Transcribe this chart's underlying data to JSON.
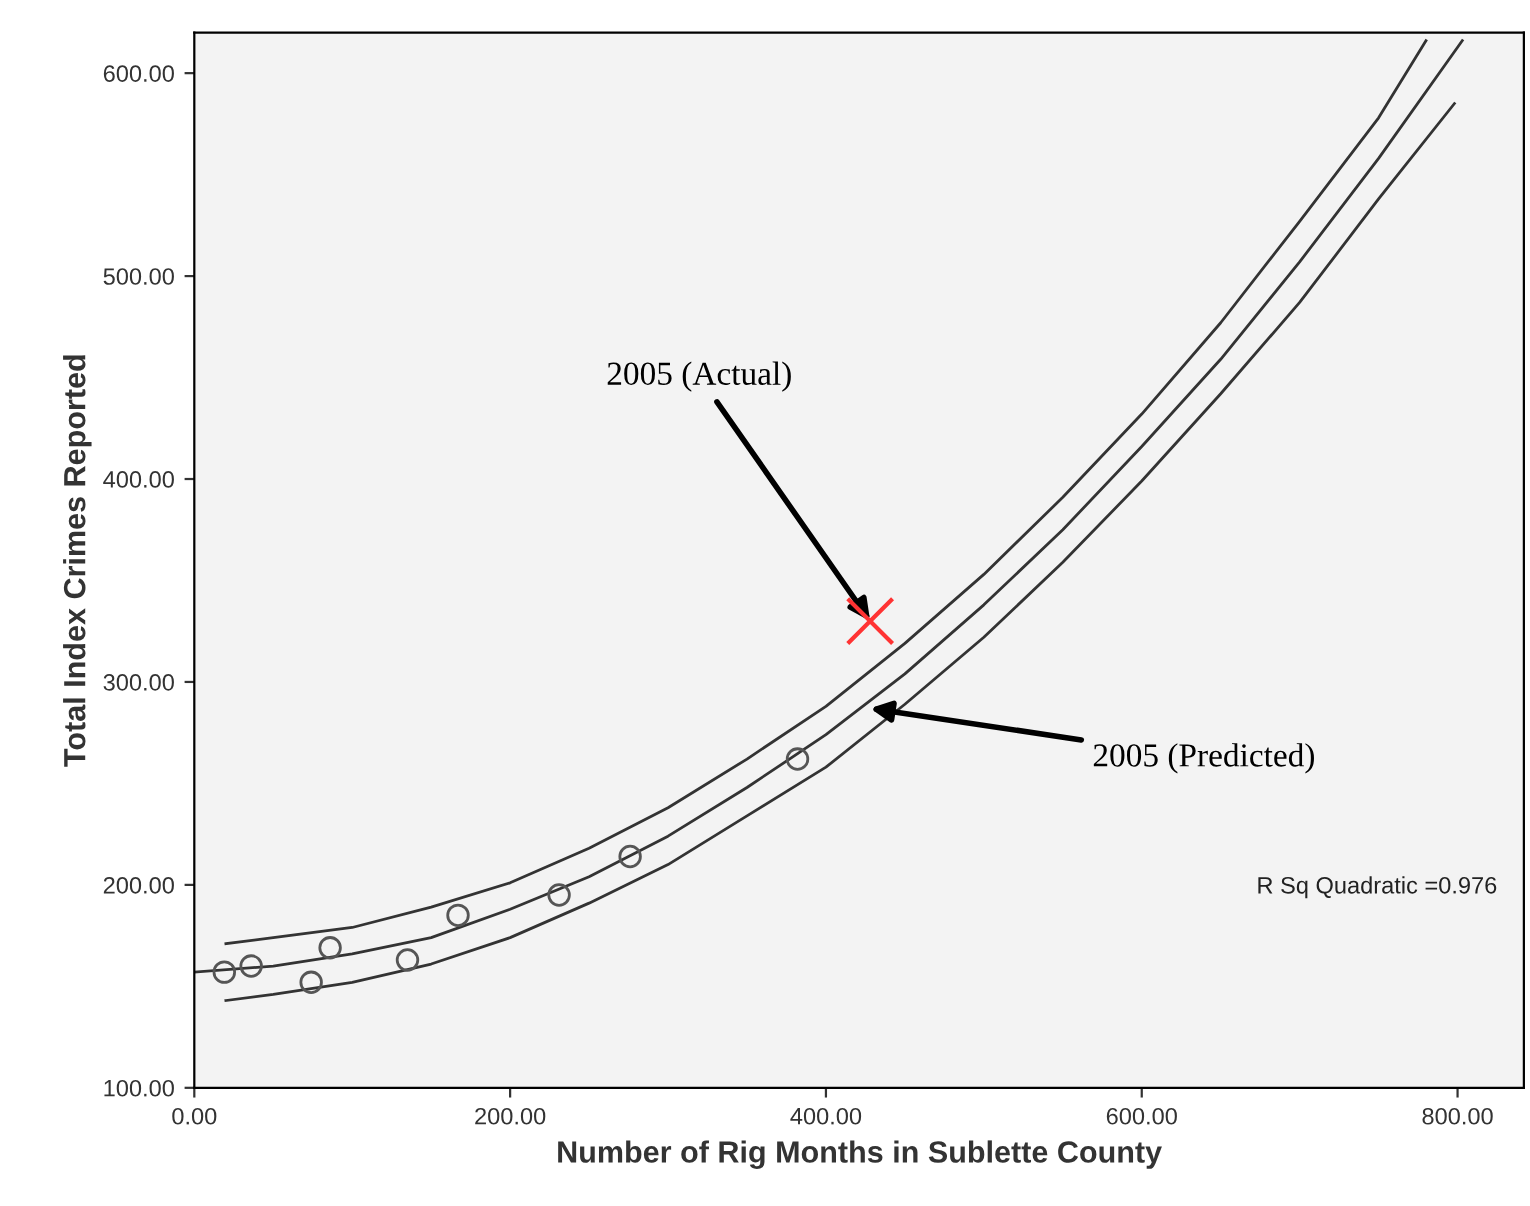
{
  "chart_data": {
    "type": "scatter",
    "xlabel": "Number of Rig Months in Sublette County",
    "ylabel": "Total Index Crimes Reported",
    "xlim": [
      0,
      842
    ],
    "ylim": [
      100,
      620
    ],
    "xticks": [
      {
        "value": 0,
        "label": "0.00"
      },
      {
        "value": 200,
        "label": "200.00"
      },
      {
        "value": 400,
        "label": "400.00"
      },
      {
        "value": 600,
        "label": "600.00"
      },
      {
        "value": 800,
        "label": "800.00"
      }
    ],
    "yticks": [
      {
        "value": 100,
        "label": "100.00"
      },
      {
        "value": 200,
        "label": "200.00"
      },
      {
        "value": 300,
        "label": "300.00"
      },
      {
        "value": 400,
        "label": "400.00"
      },
      {
        "value": 500,
        "label": "500.00"
      },
      {
        "value": 600,
        "label": "600.00"
      }
    ],
    "grid": false,
    "legend": false,
    "series": [
      {
        "marker": "circle",
        "color": "#555555",
        "x": [
          19,
          36,
          74,
          86,
          135,
          167,
          231,
          276,
          382
        ],
        "values": [
          157,
          160,
          152,
          169,
          163,
          185,
          195,
          214,
          262
        ]
      },
      {
        "type": "line",
        "color": "#333333",
        "x": [
          0,
          50,
          100,
          150,
          200,
          250,
          300,
          350,
          400,
          450,
          500,
          550,
          600,
          650,
          700,
          750,
          803
        ],
        "values": [
          157,
          160,
          166,
          174,
          188,
          204,
          224,
          248,
          274,
          304,
          338,
          375,
          416,
          459,
          507,
          558,
          616
        ]
      },
      {
        "type": "line",
        "color": "#333333",
        "x": [
          20,
          50,
          100,
          150,
          200,
          250,
          300,
          350,
          400,
          450,
          500,
          550,
          600,
          650,
          700,
          750,
          780
        ],
        "values": [
          171,
          174,
          179,
          189,
          201,
          218,
          238,
          262,
          288,
          319,
          353,
          391,
          432,
          477,
          527,
          578,
          616
        ]
      },
      {
        "type": "line",
        "color": "#333333",
        "x": [
          20,
          50,
          100,
          150,
          200,
          250,
          300,
          350,
          400,
          450,
          500,
          550,
          600,
          650,
          700,
          750,
          798
        ],
        "values": [
          143,
          146,
          152,
          161,
          174,
          191,
          210,
          234,
          258,
          289,
          322,
          359,
          399,
          442,
          487,
          538,
          585
        ]
      },
      {
        "marker": "cross",
        "color": "#ff3333",
        "x": [
          428
        ],
        "values": [
          330
        ]
      }
    ],
    "annotations": [
      {
        "text": "2005 (Actual)",
        "x": 428,
        "y": 330
      },
      {
        "text": "2005 (Predicted)",
        "x": 428,
        "y": 287
      },
      "R Sq Quadratic =0.976"
    ]
  }
}
